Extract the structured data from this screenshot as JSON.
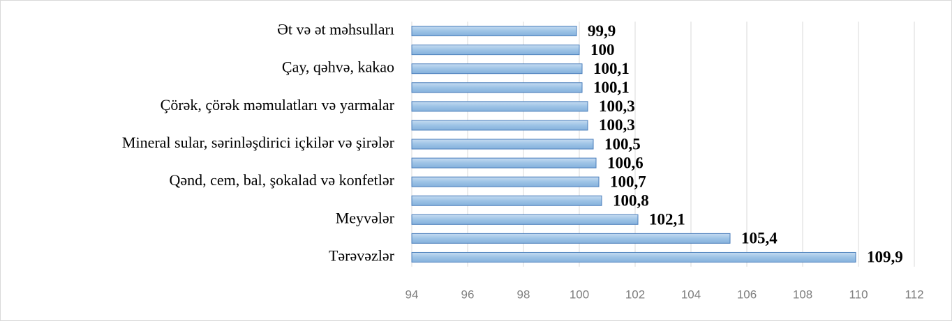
{
  "chart_data": {
    "type": "barh",
    "categories": [
      "Ət və ət məhsulları",
      null,
      "Çay, qəhvə, kakao",
      null,
      "Çörək, çörək məmulatları və yarmalar",
      null,
      "Mineral sular, sərinləşdirici içkilər və şirələr",
      null,
      "Qənd, cem, bal, şokalad və konfetlər",
      null,
      "Meyvələr",
      null,
      "Tərəvəzlər"
    ],
    "values": [
      99.9,
      100,
      100.1,
      100.1,
      100.3,
      100.3,
      100.5,
      100.6,
      100.7,
      100.8,
      102.1,
      105.4,
      109.9
    ],
    "value_labels": [
      "99,9",
      "100",
      "100,1",
      "100,1",
      "100,3",
      "100,3",
      "100,5",
      "100,6",
      "100,7",
      "100,8",
      "102,1",
      "105,4",
      "109,9"
    ],
    "color": "#9dc3e6",
    "xlim": [
      94,
      112
    ],
    "xticks": [
      94,
      96,
      98,
      100,
      102,
      104,
      106,
      108,
      110,
      112
    ],
    "grid": true
  }
}
